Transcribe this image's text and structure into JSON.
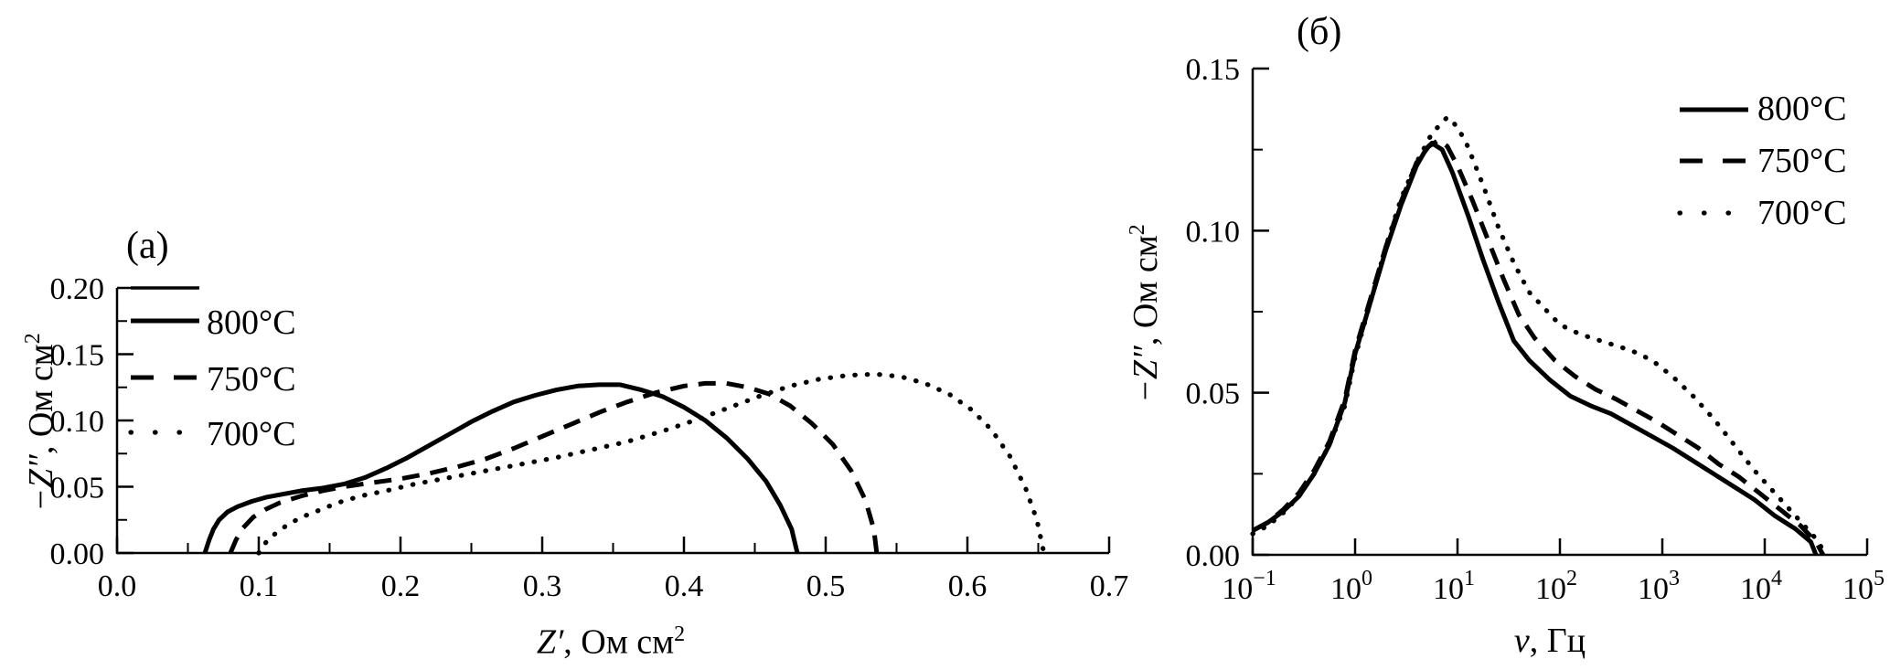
{
  "figure": {
    "background": "#ffffff",
    "ink": "#000000",
    "panels": [
      {
        "title": "(a)",
        "xlabel": {
          "symbol": "Z′",
          "rest": ", Ом см",
          "sup": "2"
        },
        "ylabel": {
          "symbol": "−Z″",
          "rest": ", Ом см",
          "sup": "2"
        },
        "legend": {
          "items": [
            {
              "label": "",
              "style": "thin-solid"
            },
            {
              "label": "800°C",
              "style": "solid"
            },
            {
              "label": "750°C",
              "style": "dashed"
            },
            {
              "label": "700°C",
              "style": "dotted"
            }
          ]
        }
      },
      {
        "title": "(б)",
        "xlabel": {
          "symbol": "ν",
          "rest": ", Гц",
          "sup": ""
        },
        "ylabel": {
          "symbol": "−Z″",
          "rest": ", Ом см",
          "sup": "2"
        },
        "legend": {
          "items": [
            {
              "label": "800°C",
              "style": "solid"
            },
            {
              "label": "750°C",
              "style": "dashed"
            },
            {
              "label": "700°C",
              "style": "dotted"
            }
          ]
        }
      }
    ]
  },
  "chart_data": [
    {
      "type": "line",
      "title": "(a)",
      "xlabel": "Z', Ом см2",
      "ylabel": "-Z'', Ом см2",
      "x_scale": "linear",
      "xlim": [
        0.0,
        0.7
      ],
      "ylim": [
        0.0,
        0.2
      ],
      "grid": false,
      "legend_position": "upper-left",
      "x_major_ticks": [
        0.0,
        0.1,
        0.2,
        0.3,
        0.4,
        0.5,
        0.6,
        0.7
      ],
      "x_tick_labels": [
        "0.0",
        "0.1",
        "0.2",
        "0.3",
        "0.4",
        "0.5",
        "0.6",
        "0.7"
      ],
      "x_minor_ticks": [
        0.05,
        0.15,
        0.25,
        0.35,
        0.45,
        0.55,
        0.65
      ],
      "y_major_ticks": [
        0.0,
        0.05,
        0.1,
        0.15,
        0.2
      ],
      "y_tick_labels": [
        "0.00",
        "0.05",
        "0.10",
        "0.15",
        "0.20"
      ],
      "y_minor_ticks": [
        0.025,
        0.075,
        0.125,
        0.175
      ],
      "series": [
        {
          "name": "800°C",
          "style": "solid",
          "points": [
            [
              0.062,
              0
            ],
            [
              0.065,
              0.01
            ],
            [
              0.068,
              0.018
            ],
            [
              0.072,
              0.025
            ],
            [
              0.078,
              0.031
            ],
            [
              0.085,
              0.035
            ],
            [
              0.095,
              0.039
            ],
            [
              0.105,
              0.042
            ],
            [
              0.115,
              0.044
            ],
            [
              0.13,
              0.047
            ],
            [
              0.145,
              0.049
            ],
            [
              0.16,
              0.052
            ],
            [
              0.175,
              0.057
            ],
            [
              0.19,
              0.064
            ],
            [
              0.205,
              0.072
            ],
            [
              0.22,
              0.081
            ],
            [
              0.235,
              0.09
            ],
            [
              0.25,
              0.099
            ],
            [
              0.265,
              0.107
            ],
            [
              0.28,
              0.114
            ],
            [
              0.295,
              0.119
            ],
            [
              0.31,
              0.123
            ],
            [
              0.325,
              0.126
            ],
            [
              0.34,
              0.127
            ],
            [
              0.355,
              0.127
            ],
            [
              0.37,
              0.123
            ],
            [
              0.385,
              0.118
            ],
            [
              0.4,
              0.11
            ],
            [
              0.415,
              0.1
            ],
            [
              0.43,
              0.087
            ],
            [
              0.445,
              0.071
            ],
            [
              0.458,
              0.054
            ],
            [
              0.468,
              0.036
            ],
            [
              0.476,
              0.018
            ],
            [
              0.48,
              0.0
            ]
          ]
        },
        {
          "name": "750°C",
          "style": "dashed",
          "points": [
            [
              0.08,
              0
            ],
            [
              0.084,
              0.01
            ],
            [
              0.089,
              0.019
            ],
            [
              0.096,
              0.027
            ],
            [
              0.105,
              0.033
            ],
            [
              0.115,
              0.038
            ],
            [
              0.13,
              0.043
            ],
            [
              0.145,
              0.047
            ],
            [
              0.16,
              0.05
            ],
            [
              0.18,
              0.053
            ],
            [
              0.2,
              0.056
            ],
            [
              0.22,
              0.06
            ],
            [
              0.24,
              0.065
            ],
            [
              0.26,
              0.071
            ],
            [
              0.28,
              0.079
            ],
            [
              0.3,
              0.088
            ],
            [
              0.32,
              0.097
            ],
            [
              0.34,
              0.106
            ],
            [
              0.36,
              0.114
            ],
            [
              0.38,
              0.121
            ],
            [
              0.4,
              0.126
            ],
            [
              0.415,
              0.128
            ],
            [
              0.43,
              0.128
            ],
            [
              0.445,
              0.125
            ],
            [
              0.46,
              0.12
            ],
            [
              0.475,
              0.111
            ],
            [
              0.49,
              0.098
            ],
            [
              0.505,
              0.082
            ],
            [
              0.518,
              0.062
            ],
            [
              0.528,
              0.04
            ],
            [
              0.534,
              0.018
            ],
            [
              0.536,
              0
            ]
          ]
        },
        {
          "name": "700°C",
          "style": "dotted",
          "points": [
            [
              0.1,
              0
            ],
            [
              0.105,
              0.008
            ],
            [
              0.112,
              0.015
            ],
            [
              0.12,
              0.021
            ],
            [
              0.13,
              0.027
            ],
            [
              0.142,
              0.032
            ],
            [
              0.156,
              0.038
            ],
            [
              0.172,
              0.043
            ],
            [
              0.19,
              0.047
            ],
            [
              0.21,
              0.052
            ],
            [
              0.235,
              0.057
            ],
            [
              0.26,
              0.062
            ],
            [
              0.285,
              0.067
            ],
            [
              0.31,
              0.072
            ],
            [
              0.335,
              0.078
            ],
            [
              0.36,
              0.084
            ],
            [
              0.385,
              0.092
            ],
            [
              0.41,
              0.101
            ],
            [
              0.435,
              0.111
            ],
            [
              0.455,
              0.119
            ],
            [
              0.475,
              0.126
            ],
            [
              0.495,
              0.131
            ],
            [
              0.515,
              0.134
            ],
            [
              0.535,
              0.135
            ],
            [
              0.553,
              0.133
            ],
            [
              0.57,
              0.128
            ],
            [
              0.587,
              0.12
            ],
            [
              0.603,
              0.108
            ],
            [
              0.617,
              0.093
            ],
            [
              0.63,
              0.073
            ],
            [
              0.641,
              0.049
            ],
            [
              0.649,
              0.025
            ],
            [
              0.654,
              0
            ]
          ]
        }
      ]
    },
    {
      "type": "line",
      "title": "(б)",
      "xlabel": "ν, Гц",
      "ylabel": "-Z'', Ом см2",
      "x_scale": "log",
      "xlim_log10": [
        -1,
        5
      ],
      "ylim": [
        0.0,
        0.15
      ],
      "grid": false,
      "legend_position": "upper-right",
      "x_tick_exponents": [
        "−1",
        "0",
        "1",
        "2",
        "3",
        "4",
        "5"
      ],
      "x_tick_exponent_values": [
        -1,
        0,
        1,
        2,
        3,
        4,
        5
      ],
      "y_major_ticks": [
        0.0,
        0.05,
        0.1,
        0.15
      ],
      "y_tick_labels": [
        "0.00",
        "0.05",
        "0.10",
        "0.15"
      ],
      "y_minor_ticks": [
        0.025,
        0.075,
        0.125
      ],
      "series": [
        {
          "name": "800°C",
          "style": "solid",
          "points_log10x": [
            [
              -1,
              0.0075
            ],
            [
              -0.85,
              0.01
            ],
            [
              -0.7,
              0.0135
            ],
            [
              -0.55,
              0.018
            ],
            [
              -0.4,
              0.025
            ],
            [
              -0.25,
              0.034
            ],
            [
              -0.1,
              0.047
            ],
            [
              0,
              0.062
            ],
            [
              0.15,
              0.078
            ],
            [
              0.3,
              0.094
            ],
            [
              0.45,
              0.108
            ],
            [
              0.6,
              0.12
            ],
            [
              0.7,
              0.1255
            ],
            [
              0.75,
              0.127
            ],
            [
              0.85,
              0.125
            ],
            [
              0.95,
              0.118
            ],
            [
              1.1,
              0.105
            ],
            [
              1.25,
              0.091
            ],
            [
              1.4,
              0.078
            ],
            [
              1.55,
              0.066
            ],
            [
              1.7,
              0.06
            ],
            [
              1.9,
              0.054
            ],
            [
              2.1,
              0.049
            ],
            [
              2.3,
              0.046
            ],
            [
              2.5,
              0.0435
            ],
            [
              2.7,
              0.04
            ],
            [
              2.9,
              0.0365
            ],
            [
              3.1,
              0.033
            ],
            [
              3.3,
              0.029
            ],
            [
              3.5,
              0.025
            ],
            [
              3.7,
              0.021
            ],
            [
              3.9,
              0.017
            ],
            [
              4.1,
              0.012
            ],
            [
              4.3,
              0.008
            ],
            [
              4.45,
              0.004
            ],
            [
              4.5,
              0
            ]
          ]
        },
        {
          "name": "750°C",
          "style": "dashed",
          "points_log10x": [
            [
              -1,
              0.0075
            ],
            [
              -0.85,
              0.01
            ],
            [
              -0.7,
              0.014
            ],
            [
              -0.55,
              0.019
            ],
            [
              -0.4,
              0.026
            ],
            [
              -0.25,
              0.035
            ],
            [
              -0.1,
              0.048
            ],
            [
              0,
              0.063
            ],
            [
              0.15,
              0.079
            ],
            [
              0.3,
              0.095
            ],
            [
              0.45,
              0.109
            ],
            [
              0.6,
              0.121
            ],
            [
              0.72,
              0.126
            ],
            [
              0.82,
              0.128
            ],
            [
              0.9,
              0.126
            ],
            [
              1.0,
              0.12
            ],
            [
              1.15,
              0.109
            ],
            [
              1.3,
              0.097
            ],
            [
              1.45,
              0.085
            ],
            [
              1.6,
              0.074
            ],
            [
              1.75,
              0.067
            ],
            [
              1.95,
              0.06
            ],
            [
              2.15,
              0.055
            ],
            [
              2.35,
              0.051
            ],
            [
              2.55,
              0.048
            ],
            [
              2.75,
              0.0445
            ],
            [
              2.95,
              0.041
            ],
            [
              3.15,
              0.037
            ],
            [
              3.35,
              0.033
            ],
            [
              3.55,
              0.028
            ],
            [
              3.75,
              0.024
            ],
            [
              3.95,
              0.019
            ],
            [
              4.15,
              0.014
            ],
            [
              4.35,
              0.009
            ],
            [
              4.5,
              0.004
            ],
            [
              4.57,
              0
            ]
          ]
        },
        {
          "name": "700°C",
          "style": "dotted",
          "points_log10x": [
            [
              -1,
              0.0065
            ],
            [
              -0.85,
              0.009
            ],
            [
              -0.7,
              0.013
            ],
            [
              -0.55,
              0.018
            ],
            [
              -0.4,
              0.025
            ],
            [
              -0.25,
              0.034
            ],
            [
              -0.1,
              0.046
            ],
            [
              0,
              0.061
            ],
            [
              0.15,
              0.078
            ],
            [
              0.3,
              0.095
            ],
            [
              0.45,
              0.11
            ],
            [
              0.6,
              0.121
            ],
            [
              0.75,
              0.13
            ],
            [
              0.9,
              0.135
            ],
            [
              1.0,
              0.132
            ],
            [
              1.1,
              0.126
            ],
            [
              1.25,
              0.114
            ],
            [
              1.4,
              0.101
            ],
            [
              1.55,
              0.09
            ],
            [
              1.7,
              0.081
            ],
            [
              1.85,
              0.076
            ],
            [
              2.0,
              0.071
            ],
            [
              2.2,
              0.068
            ],
            [
              2.45,
              0.0655
            ],
            [
              2.7,
              0.063
            ],
            [
              2.9,
              0.06
            ],
            [
              3.1,
              0.055
            ],
            [
              3.3,
              0.049
            ],
            [
              3.5,
              0.042
            ],
            [
              3.7,
              0.034
            ],
            [
              3.9,
              0.026
            ],
            [
              4.1,
              0.019
            ],
            [
              4.3,
              0.012
            ],
            [
              4.5,
              0.005
            ],
            [
              4.6,
              0
            ]
          ]
        }
      ]
    }
  ]
}
